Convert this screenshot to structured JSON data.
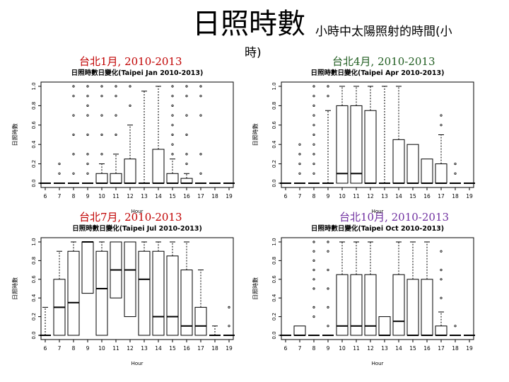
{
  "slide": {
    "title": "日照時數",
    "subtitle": "小時中太陽照射的時間(小",
    "subtitle_cont": "時)"
  },
  "chart_data": [
    {
      "type": "boxplot",
      "label": "台北1月, 2010-2013",
      "label_color": "#c00000",
      "title": "日照時數日變化(Taipei Jan 2010-2013)",
      "xlabel": "Hour",
      "ylabel": "日照時數",
      "ylim": [
        0,
        1
      ],
      "yticks": [
        "0.0",
        "0.2",
        "0.4",
        "0.6",
        "0.8",
        "1.0"
      ],
      "categories": [
        "6",
        "7",
        "8",
        "9",
        "10",
        "11",
        "12",
        "13",
        "14",
        "15",
        "16",
        "17",
        "18",
        "19"
      ],
      "boxes": [
        {
          "h": 6,
          "q1": 0,
          "med": 0,
          "q3": 0,
          "whi": 0,
          "out": []
        },
        {
          "h": 7,
          "q1": 0,
          "med": 0,
          "q3": 0,
          "whi": 0,
          "out": [
            0.1,
            0.2
          ]
        },
        {
          "h": 8,
          "q1": 0,
          "med": 0,
          "q3": 0,
          "whi": 0,
          "out": [
            0.1,
            0.3,
            0.5,
            0.7,
            0.9,
            1.0
          ]
        },
        {
          "h": 9,
          "q1": 0,
          "med": 0,
          "q3": 0,
          "whi": 0,
          "out": [
            0.1,
            0.2,
            0.3,
            0.5,
            0.7,
            0.8,
            0.9,
            1.0
          ]
        },
        {
          "h": 10,
          "q1": 0,
          "med": 0,
          "q3": 0.1,
          "whi": 0.2,
          "out": [
            0.3,
            0.5,
            0.7,
            0.9,
            1.0
          ]
        },
        {
          "h": 11,
          "q1": 0,
          "med": 0,
          "q3": 0.1,
          "whi": 0.3,
          "out": [
            0.5,
            0.7,
            0.9,
            1.0
          ]
        },
        {
          "h": 12,
          "q1": 0,
          "med": 0,
          "q3": 0.25,
          "whi": 0.6,
          "out": [
            0.8,
            1.0
          ]
        },
        {
          "h": 13,
          "q1": 0,
          "med": 0,
          "q3": 0,
          "whi": 0.95,
          "out": []
        },
        {
          "h": 14,
          "q1": 0,
          "med": 0,
          "q3": 0.35,
          "whi": 1.0,
          "out": []
        },
        {
          "h": 15,
          "q1": 0,
          "med": 0,
          "q3": 0.1,
          "whi": 0.25,
          "out": [
            0.3,
            0.4,
            0.5,
            0.6,
            0.7,
            0.8,
            0.9,
            1.0
          ]
        },
        {
          "h": 16,
          "q1": 0,
          "med": 0,
          "q3": 0.05,
          "whi": 0.1,
          "out": [
            0.2,
            0.3,
            0.5,
            0.7,
            0.9,
            1.0
          ]
        },
        {
          "h": 17,
          "q1": 0,
          "med": 0,
          "q3": 0,
          "whi": 0,
          "out": [
            0.1,
            0.3,
            0.7,
            0.9,
            1.0
          ]
        },
        {
          "h": 18,
          "q1": 0,
          "med": 0,
          "q3": 0,
          "whi": 0,
          "out": []
        },
        {
          "h": 19,
          "q1": 0,
          "med": 0,
          "q3": 0,
          "whi": 0,
          "out": []
        }
      ]
    },
    {
      "type": "boxplot",
      "label": "台北4月, 2010-2013",
      "label_color": "#1f5c1f",
      "title": "日照時數日變化(Taipei Apr 2010-2013)",
      "xlabel": "Hour",
      "ylabel": "日照時數",
      "ylim": [
        0,
        1
      ],
      "yticks": [
        "0.0",
        "0.2",
        "0.4",
        "0.6",
        "0.8",
        "1.0"
      ],
      "categories": [
        "6",
        "7",
        "8",
        "9",
        "10",
        "11",
        "12",
        "13",
        "14",
        "15",
        "16",
        "17",
        "18",
        "19"
      ],
      "boxes": [
        {
          "h": 6,
          "q1": 0,
          "med": 0,
          "q3": 0,
          "whi": 0,
          "out": []
        },
        {
          "h": 7,
          "q1": 0,
          "med": 0,
          "q3": 0,
          "whi": 0,
          "out": [
            0.1,
            0.2,
            0.3,
            0.4
          ]
        },
        {
          "h": 8,
          "q1": 0,
          "med": 0,
          "q3": 0,
          "whi": 0,
          "out": [
            0.1,
            0.2,
            0.3,
            0.4,
            0.5,
            0.6,
            0.7,
            0.8,
            0.9,
            1.0
          ]
        },
        {
          "h": 9,
          "q1": 0,
          "med": 0,
          "q3": 0,
          "whi": 0.75,
          "out": [
            0.9,
            1.0
          ]
        },
        {
          "h": 10,
          "q1": 0,
          "med": 0.1,
          "q3": 0.8,
          "whi": 1.0,
          "out": []
        },
        {
          "h": 11,
          "q1": 0,
          "med": 0.1,
          "q3": 0.8,
          "whi": 1.0,
          "out": []
        },
        {
          "h": 12,
          "q1": 0,
          "med": 0,
          "q3": 0.75,
          "whi": 1.0,
          "out": []
        },
        {
          "h": 13,
          "q1": 0,
          "med": 0,
          "q3": 0,
          "whi": 1.0,
          "out": []
        },
        {
          "h": 14,
          "q1": 0,
          "med": 0,
          "q3": 0.45,
          "whi": 1.0,
          "out": []
        },
        {
          "h": 15,
          "q1": 0,
          "med": 0,
          "q3": 0.4,
          "whi": 0.4,
          "out": []
        },
        {
          "h": 16,
          "q1": 0,
          "med": 0,
          "q3": 0.25,
          "whi": 0.25,
          "out": []
        },
        {
          "h": 17,
          "q1": 0,
          "med": 0,
          "q3": 0.2,
          "whi": 0.5,
          "out": [
            0.6,
            0.7
          ]
        },
        {
          "h": 18,
          "q1": 0,
          "med": 0,
          "q3": 0,
          "whi": 0,
          "out": [
            0.1,
            0.2
          ]
        },
        {
          "h": 19,
          "q1": 0,
          "med": 0,
          "q3": 0,
          "whi": 0,
          "out": []
        }
      ]
    },
    {
      "type": "boxplot",
      "label": "台北7月, 2010-2013",
      "label_color": "#c00000",
      "title": "日照時數日變化(Taipei Jul 2010-2013)",
      "xlabel": "Hour",
      "ylabel": "日照時數",
      "ylim": [
        0,
        1
      ],
      "yticks": [
        "0.0",
        "0.2",
        "0.4",
        "0.6",
        "0.8",
        "1.0"
      ],
      "categories": [
        "6",
        "7",
        "8",
        "9",
        "10",
        "11",
        "12",
        "13",
        "14",
        "15",
        "16",
        "17",
        "18",
        "19"
      ],
      "boxes": [
        {
          "h": 6,
          "q1": 0,
          "med": 0,
          "q3": 0,
          "whi": 0.3,
          "out": []
        },
        {
          "h": 7,
          "q1": 0,
          "med": 0.3,
          "q3": 0.6,
          "whi": 0.9,
          "out": []
        },
        {
          "h": 8,
          "q1": 0,
          "med": 0.35,
          "q3": 0.9,
          "whi": 1.0,
          "out": []
        },
        {
          "h": 9,
          "q1": 0.45,
          "med": 1.0,
          "q3": 1.0,
          "whi": 1.0,
          "out": []
        },
        {
          "h": 10,
          "q1": 0,
          "med": 0.5,
          "q3": 0.9,
          "whi": 1.0,
          "out": []
        },
        {
          "h": 11,
          "q1": 0.4,
          "med": 0.7,
          "q3": 1.0,
          "whi": 1.0,
          "out": []
        },
        {
          "h": 12,
          "q1": 0.2,
          "med": 0.7,
          "q3": 1.0,
          "whi": 1.0,
          "out": []
        },
        {
          "h": 13,
          "q1": 0,
          "med": 0.6,
          "q3": 0.9,
          "whi": 1.0,
          "out": []
        },
        {
          "h": 14,
          "q1": 0,
          "med": 0.2,
          "q3": 0.9,
          "whi": 1.0,
          "out": []
        },
        {
          "h": 15,
          "q1": 0,
          "med": 0.2,
          "q3": 0.85,
          "whi": 1.0,
          "out": []
        },
        {
          "h": 16,
          "q1": 0,
          "med": 0.1,
          "q3": 0.7,
          "whi": 1.0,
          "out": []
        },
        {
          "h": 17,
          "q1": 0,
          "med": 0.1,
          "q3": 0.3,
          "whi": 0.7,
          "out": []
        },
        {
          "h": 18,
          "q1": 0,
          "med": 0,
          "q3": 0,
          "whi": 0.1,
          "out": []
        },
        {
          "h": 19,
          "q1": 0,
          "med": 0,
          "q3": 0,
          "whi": 0,
          "out": [
            0.1,
            0.3
          ]
        }
      ]
    },
    {
      "type": "boxplot",
      "label": "台北10月, 2010-2013",
      "label_color": "#7030a0",
      "title": "日照時數日變化(Taipei Oct 2010-2013)",
      "xlabel": "Hour",
      "ylabel": "日照時數",
      "ylim": [
        0,
        1
      ],
      "yticks": [
        "0.0",
        "0.2",
        "0.4",
        "0.6",
        "0.8",
        "1.0"
      ],
      "categories": [
        "6",
        "7",
        "8",
        "9",
        "10",
        "11",
        "12",
        "13",
        "14",
        "15",
        "16",
        "17",
        "18",
        "19"
      ],
      "boxes": [
        {
          "h": 6,
          "q1": 0,
          "med": 0,
          "q3": 0,
          "whi": 0,
          "out": []
        },
        {
          "h": 7,
          "q1": 0,
          "med": 0,
          "q3": 0.1,
          "whi": 0.1,
          "out": []
        },
        {
          "h": 8,
          "q1": 0,
          "med": 0,
          "q3": 0,
          "whi": 0,
          "out": [
            0.2,
            0.3,
            0.5,
            0.6,
            0.7,
            0.8,
            0.9,
            1.0
          ]
        },
        {
          "h": 9,
          "q1": 0,
          "med": 0,
          "q3": 0,
          "whi": 0,
          "out": [
            0.1,
            0.3,
            0.5,
            0.7,
            0.9,
            1.0
          ]
        },
        {
          "h": 10,
          "q1": 0,
          "med": 0.1,
          "q3": 0.65,
          "whi": 1.0,
          "out": []
        },
        {
          "h": 11,
          "q1": 0,
          "med": 0.1,
          "q3": 0.65,
          "whi": 1.0,
          "out": []
        },
        {
          "h": 12,
          "q1": 0,
          "med": 0.1,
          "q3": 0.65,
          "whi": 1.0,
          "out": []
        },
        {
          "h": 13,
          "q1": 0,
          "med": 0,
          "q3": 0.2,
          "whi": 0.2,
          "out": []
        },
        {
          "h": 14,
          "q1": 0,
          "med": 0.15,
          "q3": 0.65,
          "whi": 1.0,
          "out": []
        },
        {
          "h": 15,
          "q1": 0,
          "med": 0,
          "q3": 0.6,
          "whi": 1.0,
          "out": []
        },
        {
          "h": 16,
          "q1": 0,
          "med": 0,
          "q3": 0.6,
          "whi": 1.0,
          "out": []
        },
        {
          "h": 17,
          "q1": 0,
          "med": 0,
          "q3": 0.1,
          "whi": 0.25,
          "out": [
            0.4,
            0.6,
            0.7,
            0.9
          ]
        },
        {
          "h": 18,
          "q1": 0,
          "med": 0,
          "q3": 0,
          "whi": 0,
          "out": [
            0.1
          ]
        },
        {
          "h": 19,
          "q1": 0,
          "med": 0,
          "q3": 0,
          "whi": 0,
          "out": []
        }
      ]
    }
  ]
}
